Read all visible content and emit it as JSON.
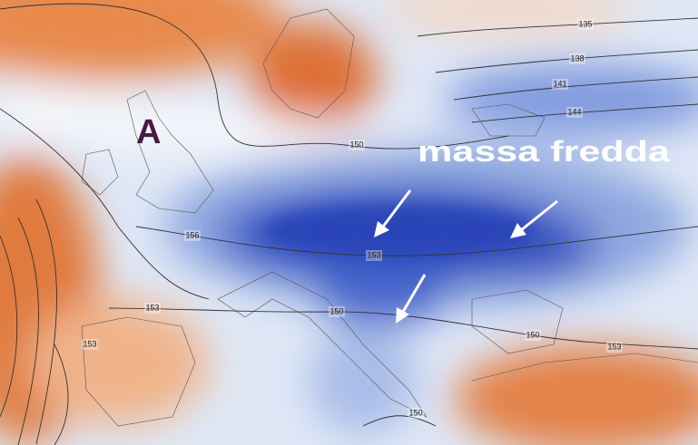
{
  "marker": "A",
  "annotation": "massa fredda",
  "contour_labels": [
    135,
    138,
    141,
    144,
    150,
    156,
    153,
    153,
    150,
    153,
    150,
    153,
    150
  ]
}
